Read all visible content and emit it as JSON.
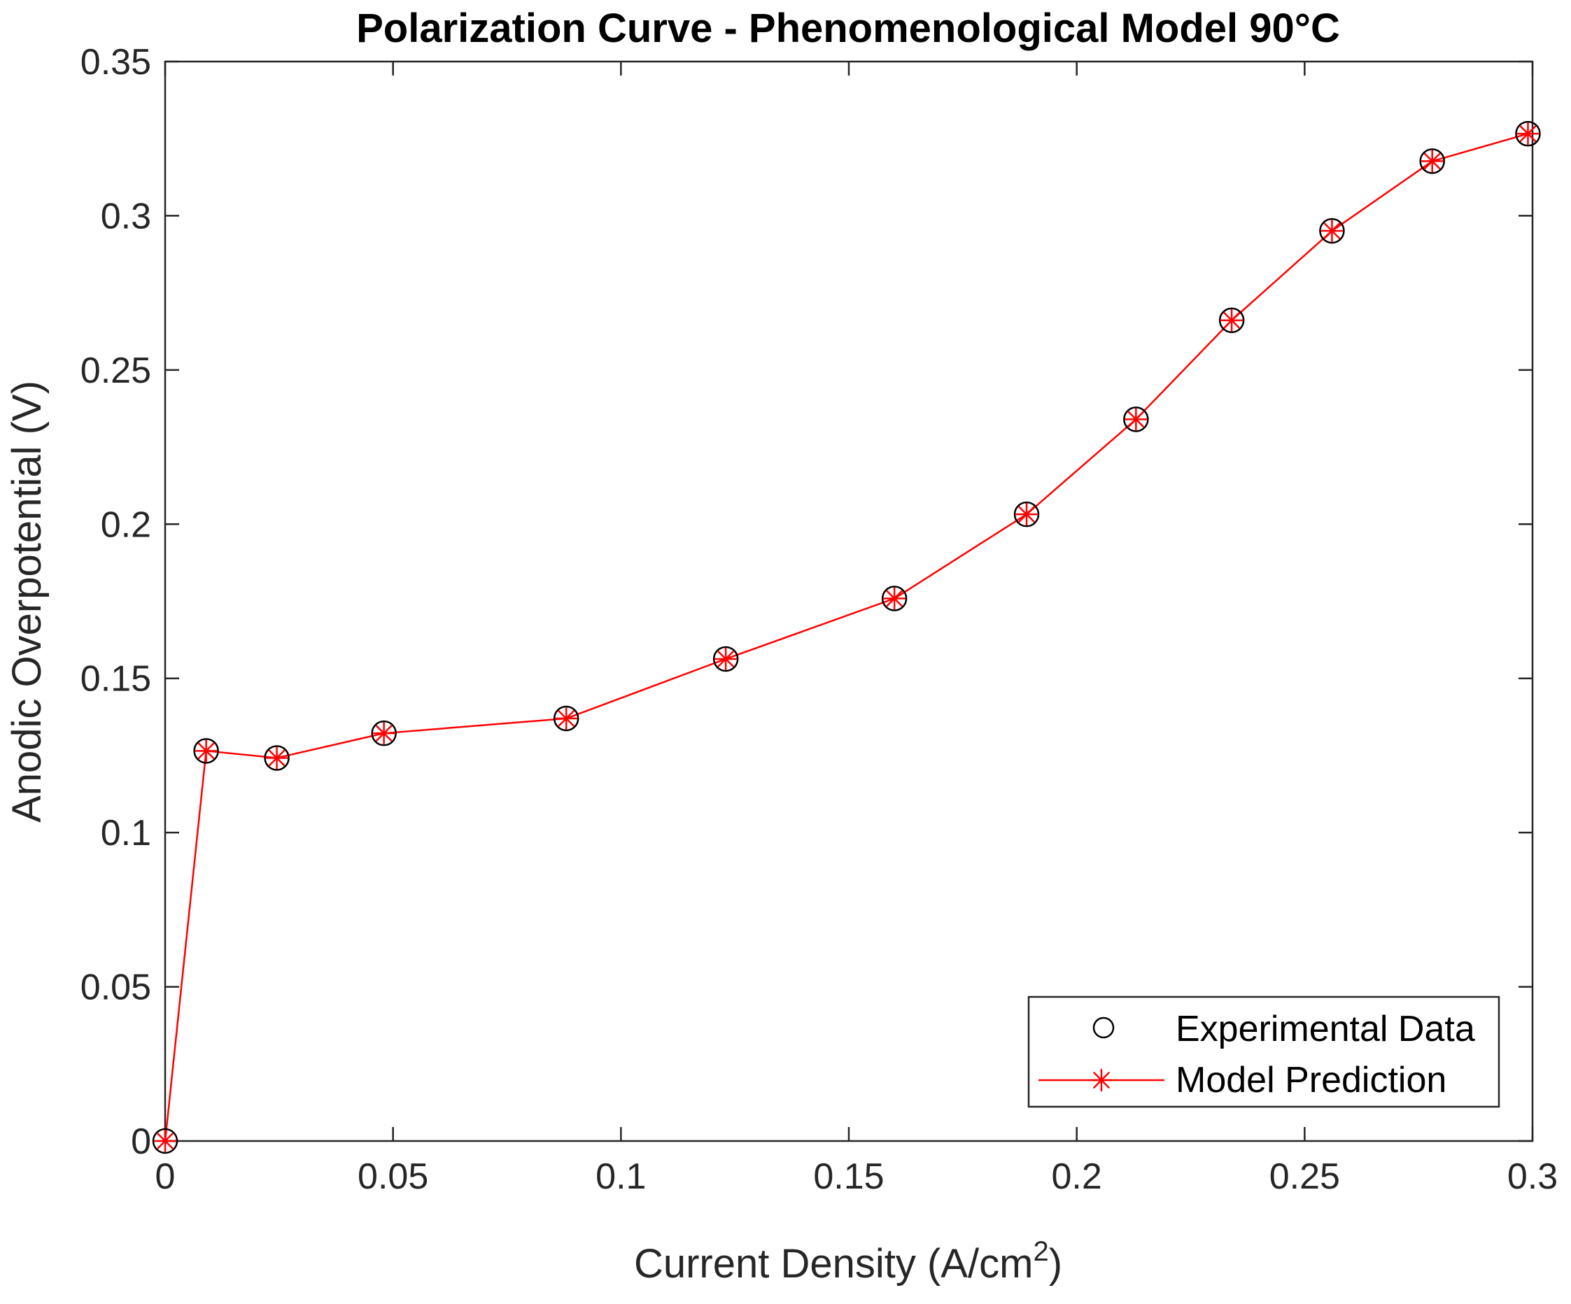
{
  "chart_data": {
    "type": "line",
    "title": "Polarization Curve - Phenomenological Model  90°C",
    "xlabel": "Current Density (A/cm",
    "xlabel_superscript": "2",
    "xlabel_suffix": ")",
    "ylabel": "Anodic Overpotential (V)",
    "xlim": [
      0,
      0.3
    ],
    "ylim": [
      0,
      0.35
    ],
    "xticks": [
      0,
      0.05,
      0.1,
      0.15,
      0.2,
      0.25,
      0.3
    ],
    "xtick_labels": [
      "0",
      "0.05",
      "0.1",
      "0.15",
      "0.2",
      "0.25",
      "0.3"
    ],
    "yticks": [
      0,
      0.05,
      0.1,
      0.15,
      0.2,
      0.25,
      0.3,
      0.35
    ],
    "ytick_labels": [
      "0",
      "0.05",
      "0.1",
      "0.15",
      "0.2",
      "0.25",
      "0.3",
      "0.35"
    ],
    "grid": false,
    "legend_position": "bottom-right",
    "series": [
      {
        "name": "Experimental Data",
        "marker": "circle",
        "line": false,
        "color": "#000000",
        "x": [
          0,
          0.009,
          0.0245,
          0.048,
          0.088,
          0.123,
          0.16,
          0.189,
          0.213,
          0.234,
          0.256,
          0.278,
          0.299
        ],
        "y": [
          0,
          0.1265,
          0.1242,
          0.1322,
          0.137,
          0.1563,
          0.1759,
          0.2032,
          0.234,
          0.2661,
          0.2951,
          0.3177,
          0.3266
        ]
      },
      {
        "name": "Model Prediction",
        "marker": "asterisk",
        "line": true,
        "color": "#ff0000",
        "x": [
          0,
          0.009,
          0.0245,
          0.048,
          0.088,
          0.123,
          0.16,
          0.189,
          0.213,
          0.234,
          0.256,
          0.278,
          0.299
        ],
        "y": [
          0,
          0.1265,
          0.1242,
          0.1322,
          0.137,
          0.1563,
          0.1759,
          0.2032,
          0.234,
          0.2661,
          0.2951,
          0.3177,
          0.3266
        ]
      }
    ]
  }
}
